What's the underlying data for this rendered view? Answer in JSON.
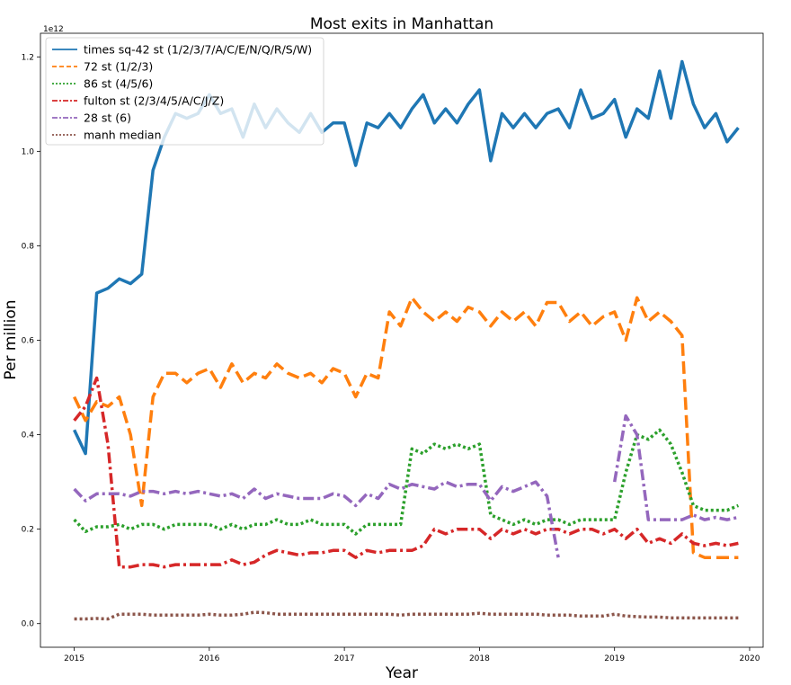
{
  "chart_data": {
    "type": "line",
    "title": "Most exits in Manhattan",
    "xlabel": "Year",
    "ylabel": "Per million",
    "y_offset_text": "1e12",
    "xlim": [
      2014.75,
      2020.1
    ],
    "ylim": [
      -0.05,
      1.25
    ],
    "x_ticks": [
      2015,
      2016,
      2017,
      2018,
      2019,
      2020
    ],
    "x_tick_labels": [
      "2015",
      "2016",
      "2017",
      "2018",
      "2019",
      "2020"
    ],
    "y_ticks": [
      0.0,
      0.2,
      0.4,
      0.6,
      0.8,
      1.0,
      1.2
    ],
    "y_tick_labels": [
      "0.0",
      "0.2",
      "0.4",
      "0.6",
      "0.8",
      "1.0",
      "1.2"
    ],
    "grid": false,
    "legend_position": "top-left",
    "x_months": [
      "2015-01",
      "2015-02",
      "2015-03",
      "2015-04",
      "2015-05",
      "2015-06",
      "2015-07",
      "2015-08",
      "2015-09",
      "2015-10",
      "2015-11",
      "2015-12",
      "2016-01",
      "2016-02",
      "2016-03",
      "2016-04",
      "2016-05",
      "2016-06",
      "2016-07",
      "2016-08",
      "2016-09",
      "2016-10",
      "2016-11",
      "2016-12",
      "2017-01",
      "2017-02",
      "2017-03",
      "2017-04",
      "2017-05",
      "2017-06",
      "2017-07",
      "2017-08",
      "2017-09",
      "2017-10",
      "2017-11",
      "2017-12",
      "2018-01",
      "2018-02",
      "2018-03",
      "2018-04",
      "2018-05",
      "2018-06",
      "2018-07",
      "2018-08",
      "2018-09",
      "2018-10",
      "2018-11",
      "2018-12",
      "2019-01",
      "2019-02",
      "2019-03",
      "2019-04",
      "2019-05",
      "2019-06",
      "2019-07",
      "2019-08",
      "2019-09",
      "2019-10",
      "2019-11",
      "2019-12"
    ],
    "series": [
      {
        "name": "times sq-42 st (1/2/3/7/A/C/E/N/Q/R/S/W)",
        "color": "#1f77b4",
        "style": "solid",
        "values": [
          0.41,
          0.36,
          0.7,
          0.71,
          0.73,
          0.72,
          0.74,
          0.96,
          1.03,
          1.08,
          1.07,
          1.08,
          1.12,
          1.08,
          1.09,
          1.03,
          1.1,
          1.05,
          1.09,
          1.06,
          1.04,
          1.08,
          1.04,
          1.06,
          1.06,
          0.97,
          1.06,
          1.05,
          1.08,
          1.05,
          1.09,
          1.12,
          1.06,
          1.09,
          1.06,
          1.1,
          1.13,
          0.98,
          1.08,
          1.05,
          1.08,
          1.05,
          1.08,
          1.09,
          1.05,
          1.13,
          1.07,
          1.08,
          1.11,
          1.03,
          1.09,
          1.07,
          1.17,
          1.07,
          1.19,
          1.1,
          1.05,
          1.08,
          1.02,
          1.05
        ]
      },
      {
        "name": "72 st (1/2/3)",
        "color": "#ff7f0e",
        "style": "dashed",
        "values": [
          0.48,
          0.43,
          0.47,
          0.46,
          0.48,
          0.4,
          0.25,
          0.48,
          0.53,
          0.53,
          0.51,
          0.53,
          0.54,
          0.5,
          0.55,
          0.51,
          0.53,
          0.52,
          0.55,
          0.53,
          0.52,
          0.53,
          0.51,
          0.54,
          0.53,
          0.48,
          0.53,
          0.52,
          0.66,
          0.63,
          0.69,
          0.66,
          0.64,
          0.66,
          0.64,
          0.67,
          0.66,
          0.63,
          0.66,
          0.64,
          0.66,
          0.63,
          0.68,
          0.68,
          0.64,
          0.66,
          0.63,
          0.65,
          0.66,
          0.6,
          0.69,
          0.64,
          0.66,
          0.64,
          0.61,
          0.15,
          0.14,
          0.14,
          0.14,
          0.14
        ]
      },
      {
        "name": "86 st (4/5/6)",
        "color": "#2ca02c",
        "style": "dotted",
        "values": [
          0.22,
          0.195,
          0.205,
          0.205,
          0.21,
          0.2,
          0.21,
          0.21,
          0.2,
          0.21,
          0.21,
          0.21,
          0.21,
          0.2,
          0.21,
          0.2,
          0.21,
          0.21,
          0.22,
          0.21,
          0.21,
          0.22,
          0.21,
          0.21,
          0.21,
          0.19,
          0.21,
          0.21,
          0.21,
          0.21,
          0.37,
          0.36,
          0.38,
          0.37,
          0.38,
          0.37,
          0.38,
          0.23,
          0.22,
          0.21,
          0.22,
          0.21,
          0.22,
          0.22,
          0.21,
          0.22,
          0.22,
          0.22,
          0.22,
          0.32,
          0.4,
          0.39,
          0.41,
          0.38,
          0.32,
          0.25,
          0.24,
          0.24,
          0.24,
          0.25
        ]
      },
      {
        "name": "fulton st (2/3/4/5/A/C/J/Z)",
        "color": "#d62728",
        "style": "dashdot",
        "values": [
          0.43,
          0.46,
          0.52,
          0.38,
          0.12,
          0.12,
          0.125,
          0.125,
          0.12,
          0.125,
          0.125,
          0.125,
          0.125,
          0.125,
          0.135,
          0.125,
          0.13,
          0.145,
          0.155,
          0.15,
          0.145,
          0.15,
          0.15,
          0.155,
          0.155,
          0.14,
          0.155,
          0.15,
          0.155,
          0.155,
          0.155,
          0.165,
          0.2,
          0.19,
          0.2,
          0.2,
          0.2,
          0.18,
          0.2,
          0.19,
          0.2,
          0.19,
          0.2,
          0.2,
          0.19,
          0.2,
          0.2,
          0.19,
          0.2,
          0.18,
          0.2,
          0.17,
          0.18,
          0.17,
          0.19,
          0.17,
          0.165,
          0.17,
          0.165,
          0.17
        ]
      },
      {
        "name": "28 st (6)",
        "color": "#9467bd",
        "style": "dashdot",
        "values": [
          0.285,
          0.26,
          0.275,
          0.275,
          0.275,
          0.27,
          0.28,
          0.28,
          0.275,
          0.28,
          0.275,
          0.28,
          0.275,
          0.27,
          0.275,
          0.265,
          0.285,
          0.265,
          0.275,
          0.27,
          0.265,
          0.265,
          0.265,
          0.275,
          0.27,
          0.25,
          0.275,
          0.265,
          0.295,
          0.285,
          0.295,
          0.29,
          0.285,
          0.3,
          0.29,
          0.295,
          0.295,
          0.26,
          0.29,
          0.28,
          0.29,
          0.3,
          0.27,
          0.14,
          null,
          null,
          null,
          null,
          0.3,
          0.44,
          0.4,
          0.22,
          0.22,
          0.22,
          0.22,
          0.23,
          0.22,
          0.225,
          0.22,
          0.225
        ]
      },
      {
        "name": "manh median",
        "color": "#8c564b",
        "style": "dotted",
        "values": [
          0.01,
          0.01,
          0.011,
          0.01,
          0.02,
          0.02,
          0.02,
          0.018,
          0.018,
          0.018,
          0.018,
          0.018,
          0.02,
          0.018,
          0.018,
          0.02,
          0.024,
          0.023,
          0.02,
          0.02,
          0.02,
          0.02,
          0.02,
          0.02,
          0.02,
          0.02,
          0.02,
          0.02,
          0.02,
          0.018,
          0.02,
          0.02,
          0.02,
          0.02,
          0.02,
          0.02,
          0.022,
          0.02,
          0.02,
          0.02,
          0.02,
          0.02,
          0.018,
          0.018,
          0.018,
          0.016,
          0.016,
          0.016,
          0.02,
          0.016,
          0.015,
          0.014,
          0.014,
          0.012,
          0.012,
          0.012,
          0.012,
          0.012,
          0.012,
          0.012
        ]
      }
    ]
  }
}
